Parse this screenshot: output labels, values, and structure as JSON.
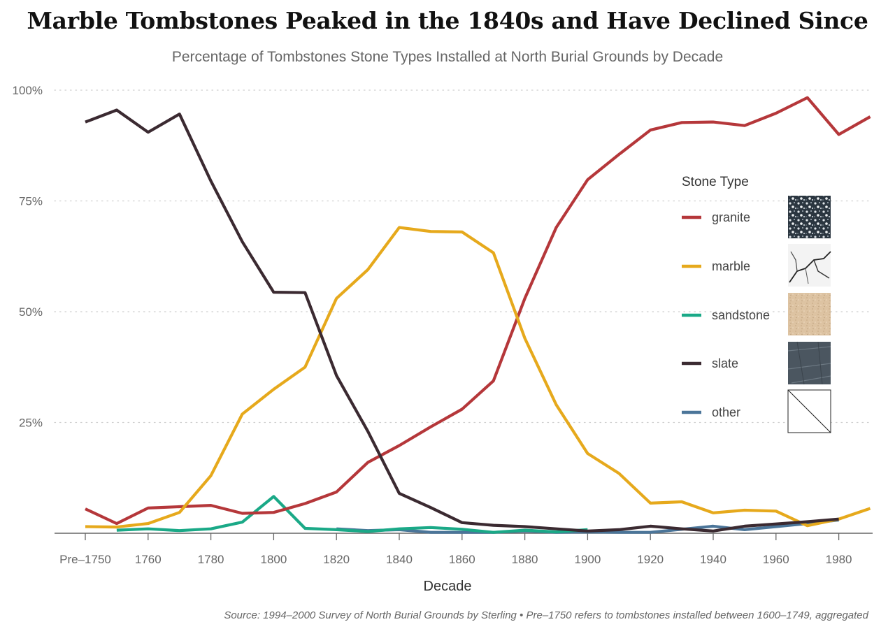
{
  "header": {
    "title": "Marble Tombstones Peaked in the 1840s and Have Declined Since",
    "subtitle": "Percentage of Tombstones Stone Types Installed at North Burial Grounds by Decade"
  },
  "footer": {
    "source": "Source: 1994–2000 Survey of North Burial Grounds by Sterling • Pre–1750 refers to tombstones installed between 1600–1749, aggregated"
  },
  "chart_data": {
    "type": "line",
    "title": "Marble Tombstones Peaked in the 1840s and Have Declined Since",
    "subtitle": "Percentage of Tombstones Stone Types Installed at North Burial Grounds by Decade",
    "xlabel": "Decade",
    "ylabel": "",
    "x": [
      "Pre–1750",
      "1750",
      "1760",
      "1770",
      "1780",
      "1790",
      "1800",
      "1810",
      "1820",
      "1830",
      "1840",
      "1850",
      "1860",
      "1870",
      "1880",
      "1890",
      "1900",
      "1910",
      "1920",
      "1930",
      "1940",
      "1950",
      "1960",
      "1970",
      "1980",
      "1990"
    ],
    "x_tick_labels": [
      "Pre–1750",
      "1760",
      "1780",
      "1800",
      "1820",
      "1840",
      "1860",
      "1880",
      "1900",
      "1920",
      "1940",
      "1960",
      "1980"
    ],
    "y_tick_labels": [
      "100%",
      "75%",
      "50%",
      "25%"
    ],
    "y_ticks": [
      100,
      75,
      50,
      25
    ],
    "ylim": [
      0,
      100
    ],
    "grid": "horizontal dotted",
    "legend_title": "Stone Type",
    "legend_position": "right",
    "series": [
      {
        "name": "granite",
        "color": "#b5373a",
        "values": [
          5.5,
          2.2,
          5.7,
          6.0,
          6.3,
          4.5,
          4.7,
          6.7,
          9.3,
          16.0,
          19.8,
          24.0,
          28.0,
          34.4,
          53.0,
          69.0,
          79.8,
          85.5,
          91.0,
          92.7,
          92.8,
          92.0,
          94.8,
          98.3,
          90.0,
          94.0
        ]
      },
      {
        "name": "marble",
        "color": "#e6a91c",
        "values": [
          1.5,
          1.4,
          2.2,
          4.7,
          13.0,
          26.9,
          32.5,
          37.5,
          53.0,
          59.5,
          69.0,
          68.1,
          68.0,
          63.3,
          44.0,
          29.0,
          18.0,
          13.5,
          6.8,
          7.1,
          4.6,
          5.2,
          5.0,
          1.7,
          3.2,
          5.6
        ]
      },
      {
        "name": "sandstone",
        "color": "#1aa987",
        "values": [
          null,
          0.7,
          1.0,
          0.6,
          1.0,
          2.5,
          8.3,
          1.1,
          0.8,
          0.4,
          1.0,
          1.3,
          0.9,
          0.2,
          0.7,
          0.3,
          0.8,
          null,
          null,
          null,
          null,
          null,
          null,
          null,
          null,
          null
        ]
      },
      {
        "name": "slate",
        "color": "#3b2a31",
        "values": [
          92.8,
          95.5,
          90.5,
          94.6,
          79.5,
          65.8,
          54.4,
          54.3,
          35.6,
          23.0,
          9.0,
          5.8,
          2.4,
          1.8,
          1.5,
          1.0,
          0.5,
          0.8,
          1.6,
          1.0,
          0.5,
          1.6,
          2.1,
          2.6,
          3.2,
          null
        ]
      },
      {
        "name": "other",
        "color": "#4b7599",
        "values": [
          null,
          null,
          null,
          null,
          null,
          null,
          null,
          null,
          1.0,
          0.6,
          0.8,
          0.2,
          0.2,
          0.2,
          0.5,
          0.2,
          0.3,
          0.2,
          0.2,
          0.9,
          1.6,
          0.8,
          1.5,
          2.2,
          3.0,
          null
        ]
      }
    ]
  }
}
